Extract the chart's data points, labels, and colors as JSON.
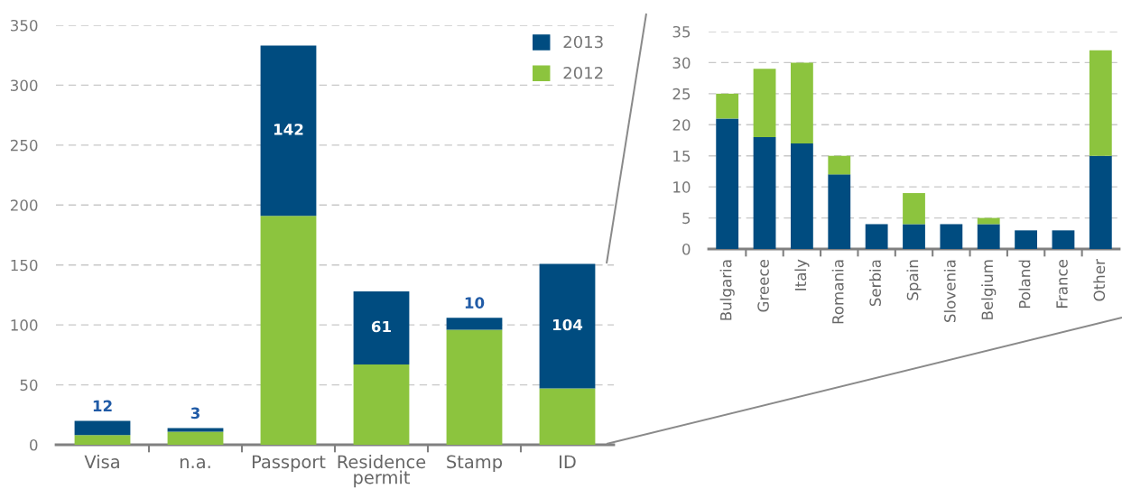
{
  "chart_data": [
    {
      "type": "bar",
      "stacked": true,
      "categories": [
        "Visa",
        "n.a.",
        "Passport",
        "Residence permit",
        "Stamp",
        "ID"
      ],
      "series": [
        {
          "name": "2012",
          "color": "#8cc43e",
          "values": [
            8,
            11,
            191,
            67,
            96,
            47
          ]
        },
        {
          "name": "2013",
          "color": "#004c80",
          "values": [
            12,
            3,
            142,
            61,
            10,
            104
          ],
          "value_labels": [
            "12",
            "3",
            "142",
            "61",
            "10",
            "104"
          ]
        }
      ],
      "ylim": [
        0,
        350
      ],
      "yticks": [
        0,
        50,
        100,
        150,
        200,
        250,
        300,
        350
      ],
      "grid": "y",
      "legend": "top right"
    },
    {
      "type": "bar",
      "stacked": true,
      "categories": [
        "Bulgaria",
        "Greece",
        "Italy",
        "Romania",
        "Serbia",
        "Spain",
        "Slovenia",
        "Belgium",
        "Poland",
        "France",
        "Other"
      ],
      "series": [
        {
          "color": "#004c80",
          "values": [
            21,
            18,
            17,
            12,
            4,
            4,
            4,
            4,
            3,
            3,
            15
          ]
        },
        {
          "color": "#8cc43e",
          "values": [
            4,
            11,
            13,
            3,
            0,
            5,
            0,
            1,
            0,
            0,
            17
          ]
        }
      ],
      "ylim": [
        0,
        35
      ],
      "yticks": [
        0,
        5,
        10,
        15,
        20,
        25,
        30,
        35
      ],
      "grid": "y",
      "legend": false
    }
  ]
}
